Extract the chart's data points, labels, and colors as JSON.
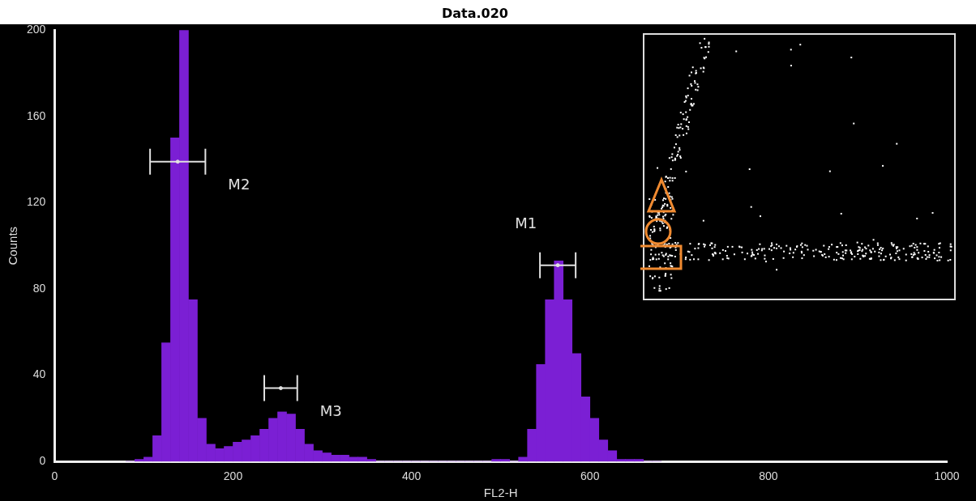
{
  "chart_data": {
    "type": "histogram",
    "title": "Data.020",
    "xlabel": "FL2-H",
    "ylabel": "Counts",
    "color": "#7b1fd4",
    "bins": [
      80,
      90,
      100,
      110,
      120,
      130,
      140,
      150,
      160,
      170,
      180,
      190,
      200,
      210,
      220,
      230,
      240,
      250,
      260,
      270,
      280,
      290,
      300,
      310,
      320,
      330,
      340,
      350,
      360,
      370,
      380,
      390,
      400,
      410,
      420,
      430,
      440,
      450,
      460,
      470,
      480,
      490,
      500,
      510,
      520,
      530,
      540,
      550,
      560,
      570,
      580,
      590,
      600,
      610,
      620,
      630,
      640,
      650,
      660,
      670,
      680
    ],
    "values": [
      0,
      1,
      2,
      12,
      55,
      150,
      200,
      75,
      20,
      8,
      6,
      7,
      9,
      10,
      12,
      15,
      20,
      23,
      22,
      15,
      8,
      5,
      4,
      3,
      3,
      2,
      2,
      1,
      0,
      0,
      0,
      0,
      0,
      0,
      0,
      0,
      0,
      0,
      0,
      0,
      0,
      1,
      1,
      0,
      2,
      15,
      45,
      75,
      93,
      75,
      50,
      30,
      20,
      10,
      5,
      1,
      1,
      1,
      0,
      0
    ],
    "series": [
      {
        "type": "scatter",
        "color": "#e0e0e0",
        "x": [
          138,
          253.5,
          564
        ],
        "values": [
          139,
          34,
          91
        ],
        "xerrors": [
          31,
          18.5,
          20
        ]
      }
    ],
    "annotations": [
      "M2",
      "M3",
      "M1"
    ],
    "xlim": [
      0,
      1000
    ],
    "xticks": [
      0,
      200,
      400,
      600,
      800,
      1000
    ],
    "ylim": [
      0,
      200
    ],
    "yticks": [
      0,
      40,
      80,
      120,
      160,
      200
    ],
    "grid": false,
    "legend": false
  }
}
